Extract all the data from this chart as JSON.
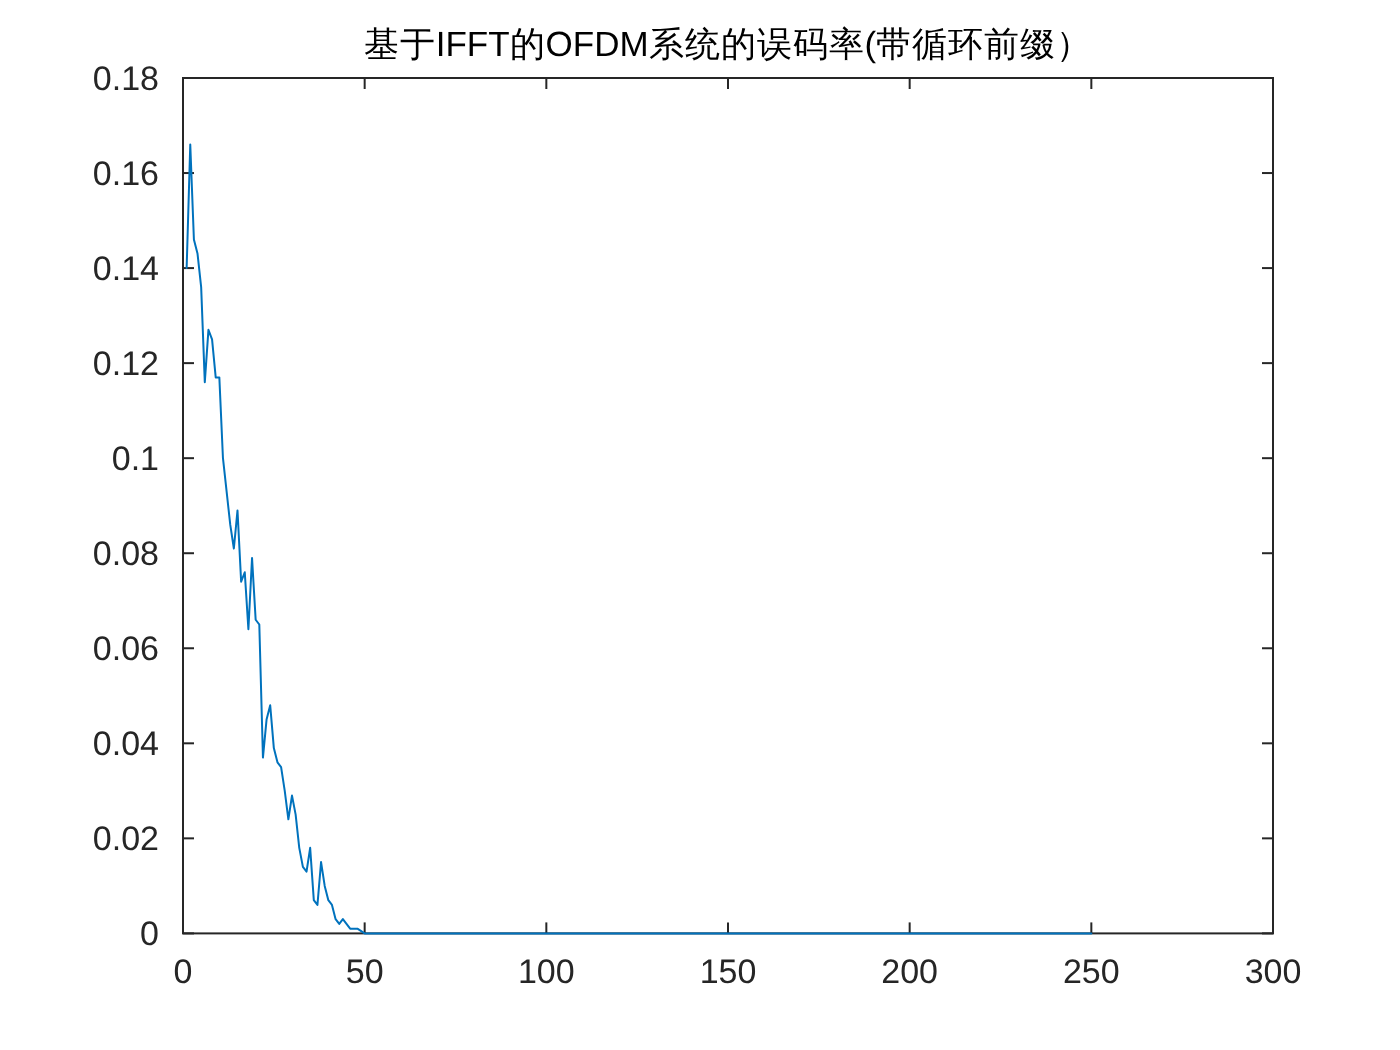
{
  "chart_data": {
    "type": "line",
    "title": "基于IFFT的OFDM系统的误码率(带循环前缀）",
    "x": [
      1,
      2,
      3,
      4,
      5,
      6,
      7,
      8,
      9,
      10,
      11,
      12,
      13,
      14,
      15,
      16,
      17,
      18,
      19,
      20,
      21,
      22,
      23,
      24,
      25,
      26,
      27,
      28,
      29,
      30,
      31,
      32,
      33,
      34,
      35,
      36,
      37,
      38,
      39,
      40,
      41,
      42,
      43,
      44,
      45,
      46,
      47,
      48,
      50,
      100,
      150,
      200,
      250
    ],
    "values": [
      0.14,
      0.166,
      0.146,
      0.143,
      0.136,
      0.116,
      0.127,
      0.125,
      0.117,
      0.117,
      0.1,
      0.093,
      0.086,
      0.081,
      0.089,
      0.074,
      0.076,
      0.064,
      0.079,
      0.066,
      0.065,
      0.037,
      0.045,
      0.048,
      0.039,
      0.036,
      0.035,
      0.03,
      0.024,
      0.029,
      0.025,
      0.018,
      0.014,
      0.013,
      0.018,
      0.007,
      0.006,
      0.015,
      0.01,
      0.007,
      0.006,
      0.003,
      0.002,
      0.003,
      0.002,
      0.001,
      0.001,
      0.001,
      0,
      0,
      0,
      0,
      0
    ],
    "color": "#0072bd",
    "xlim": [
      0,
      300
    ],
    "xticks": [
      0,
      50,
      100,
      150,
      200,
      250,
      300
    ],
    "ylim": [
      0,
      0.18
    ],
    "yticks": [
      0,
      0.02,
      0.04,
      0.06,
      0.08,
      0.1,
      0.12,
      0.14,
      0.16,
      0.18
    ]
  }
}
